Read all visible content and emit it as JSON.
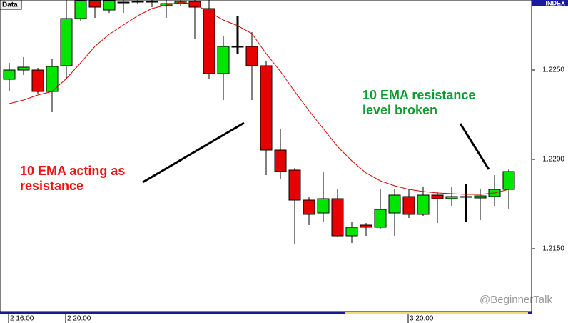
{
  "chart_data": {
    "type": "candlestick",
    "badge": "Data",
    "symbol": "INDEX",
    "watermark": "@BeginnerTalk",
    "categories": [
      "2 16:00",
      null,
      null,
      null,
      "2 20:00",
      null,
      null,
      null,
      null,
      null,
      null,
      null,
      null,
      null,
      null,
      null,
      null,
      null,
      null,
      null,
      null,
      null,
      null,
      null,
      null,
      null,
      null,
      null,
      "3 20:00",
      null,
      null,
      null,
      null,
      null,
      null,
      null
    ],
    "open": [
      1.22448,
      1.225,
      1.225,
      1.2238,
      1.22524,
      1.22788,
      1.2289,
      1.22836,
      1.22876,
      1.2288,
      1.22884,
      1.2286,
      1.22872,
      1.22884,
      1.22844,
      1.2248,
      1.22632,
      1.22632,
      1.22524,
      1.22052,
      1.2194,
      1.21772,
      1.217,
      1.2178,
      1.21572,
      1.21632,
      1.2162,
      1.217,
      1.21792,
      1.21692,
      1.218,
      1.2178,
      1.21792,
      1.21784,
      1.21792,
      1.21832
    ],
    "high": [
      1.2254,
      1.22572,
      1.22512,
      1.2256,
      1.22892,
      1.22892,
      1.22892,
      1.22892,
      1.22892,
      1.22892,
      1.22892,
      1.22892,
      1.22892,
      1.22892,
      1.22892,
      1.22692,
      1.228,
      1.22712,
      1.22552,
      1.22172,
      1.21952,
      1.21792,
      1.21932,
      1.21832,
      1.21652,
      1.21644,
      1.21832,
      1.21832,
      1.21832,
      1.21844,
      1.2182,
      1.21844,
      1.2186,
      1.21832,
      1.21912,
      1.21944
    ],
    "low": [
      1.2238,
      1.22472,
      1.22364,
      1.22264,
      1.22452,
      1.22772,
      1.22792,
      1.2282,
      1.2282,
      1.22872,
      1.22852,
      1.22792,
      1.2286,
      1.22672,
      1.22452,
      1.22332,
      1.22592,
      1.22332,
      1.21912,
      1.21892,
      1.21524,
      1.21632,
      1.21652,
      1.21564,
      1.21532,
      1.21572,
      1.21612,
      1.21572,
      1.21672,
      1.21684,
      1.21644,
      1.2174,
      1.21652,
      1.2166,
      1.2174,
      1.2172
    ],
    "close": [
      1.225,
      1.22516,
      1.2238,
      1.2252,
      1.22788,
      1.2289,
      1.22852,
      1.2289,
      1.2288,
      1.22884,
      1.2288,
      1.22872,
      1.22884,
      1.22852,
      1.2248,
      1.22632,
      1.22632,
      1.22524,
      1.22052,
      1.21932,
      1.21772,
      1.21692,
      1.2178,
      1.21572,
      1.2162,
      1.2162,
      1.2172,
      1.218,
      1.21692,
      1.218,
      1.2178,
      1.21792,
      1.21792,
      1.21796,
      1.21832,
      1.21932
    ],
    "colors": {
      "up": "#00e600",
      "down": "#e60000",
      "flat": "#000000"
    },
    "ema": {
      "color": "#dd0000",
      "values": [
        1.22312,
        1.22332,
        1.2236,
        1.2238,
        1.22452,
        1.2254,
        1.22632,
        1.227,
        1.22752,
        1.22804,
        1.22844,
        1.22864,
        1.2288,
        1.22868,
        1.22824,
        1.2278,
        1.22748,
        1.22704,
        1.22592,
        1.22492,
        1.2238,
        1.22272,
        1.22172,
        1.22072,
        1.21992,
        1.21924,
        1.2188,
        1.21852,
        1.21832,
        1.2182,
        1.21812,
        1.21808,
        1.21804,
        1.21804,
        1.21812,
        1.21832
      ]
    },
    "ylim": [
      1.21148,
      1.22892
    ],
    "yticks": [
      {
        "value": 1.215,
        "label": "1.2150"
      },
      {
        "value": 1.22,
        "label": "1.2200"
      },
      {
        "value": 1.225,
        "label": "1.2250"
      }
    ],
    "annotations": [
      {
        "lines": [
          "10 EMA acting as",
          "resistance"
        ],
        "color": "#ee1111"
      },
      {
        "lines": [
          "10 EMA resistance",
          "level broken"
        ],
        "color": "#119933"
      }
    ]
  }
}
